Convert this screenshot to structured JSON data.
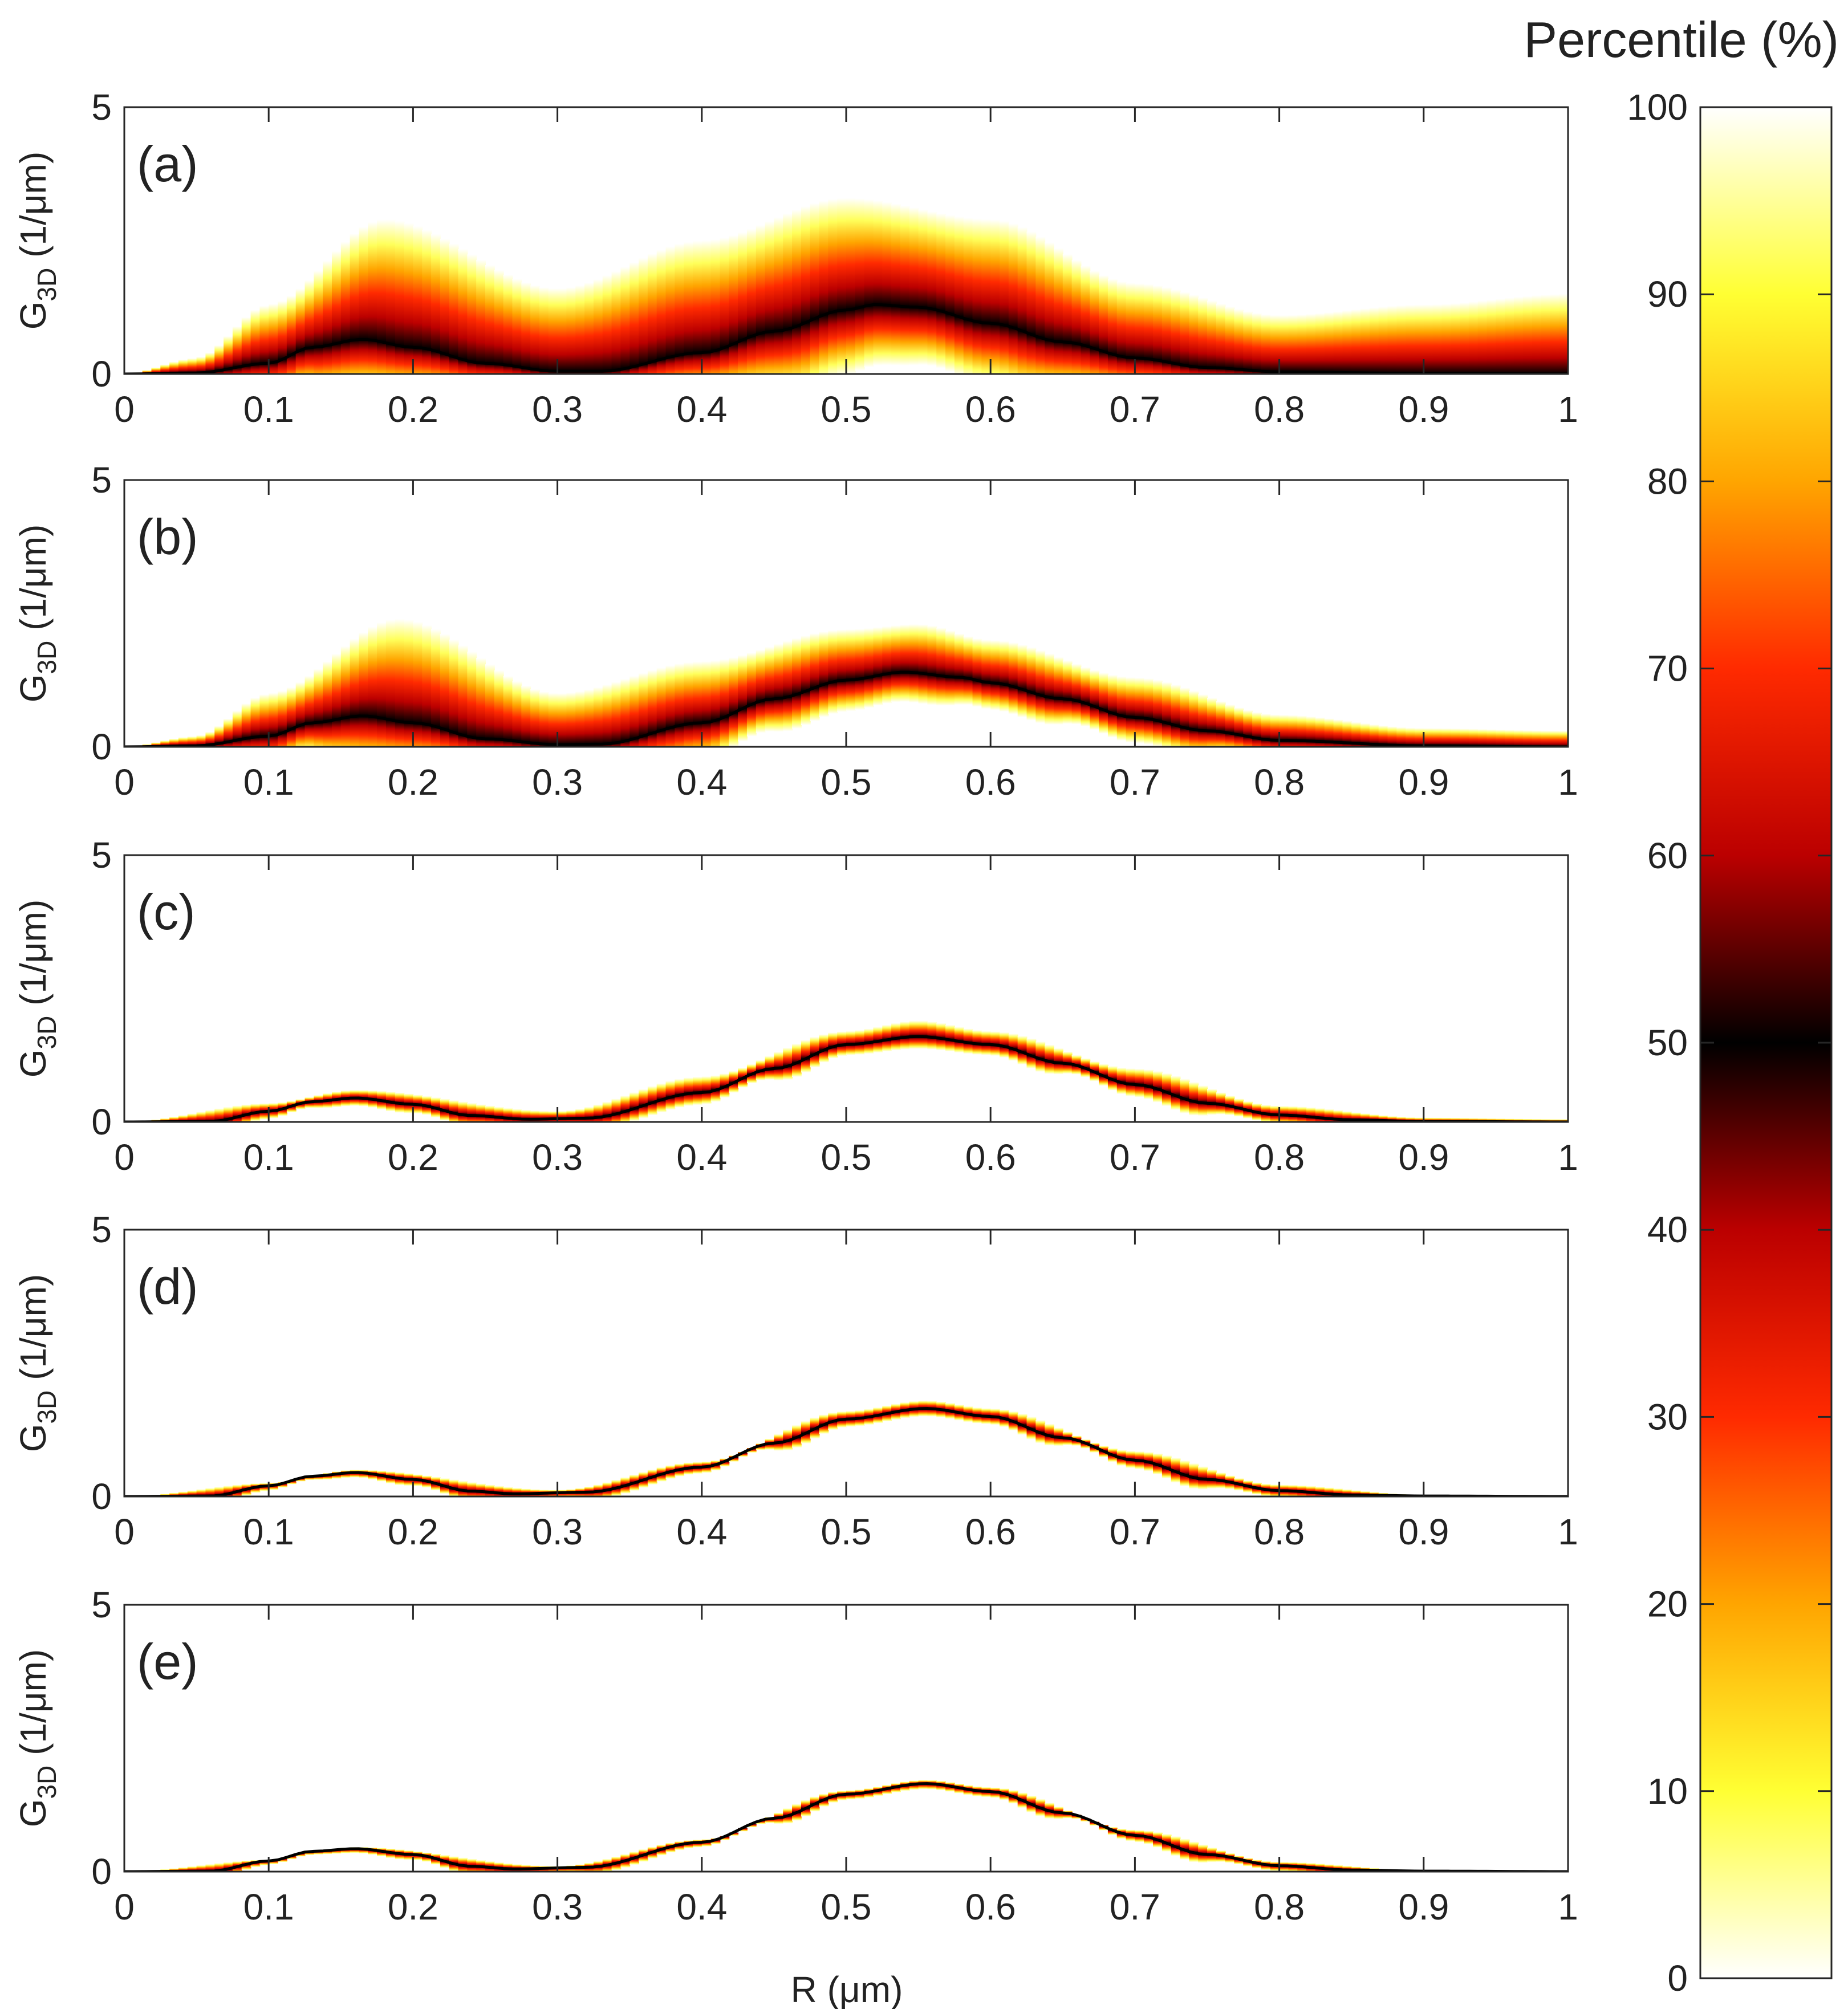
{
  "figure": {
    "xlabel": "R (μm)",
    "ylabel_main": "G",
    "ylabel_sub": "3D",
    "ylabel_unit": " (1/μm)"
  },
  "colorbar": {
    "title": "Percentile (%)",
    "range": [
      0,
      100
    ],
    "ticks": [
      "0",
      "10",
      "20",
      "30",
      "40",
      "50",
      "60",
      "70",
      "80",
      "90",
      "100"
    ],
    "colormap_stops": [
      {
        "value": 0,
        "color": "#ffffff"
      },
      {
        "value": 10,
        "color": "#ffff33"
      },
      {
        "value": 20,
        "color": "#ffa500"
      },
      {
        "value": 30,
        "color": "#ff2a00"
      },
      {
        "value": 40,
        "color": "#bb0000"
      },
      {
        "value": 50,
        "color": "#000000"
      },
      {
        "value": 60,
        "color": "#bb0000"
      },
      {
        "value": 70,
        "color": "#ff2a00"
      },
      {
        "value": 80,
        "color": "#ffa500"
      },
      {
        "value": 90,
        "color": "#ffff33"
      },
      {
        "value": 100,
        "color": "#ffffff"
      }
    ]
  },
  "chart_data": [
    {
      "type": "heatmap",
      "panel": "(a)",
      "xlim": [
        0,
        1
      ],
      "ylim": [
        0,
        5
      ],
      "xticks": [
        "0",
        "0.1",
        "0.2",
        "0.3",
        "0.4",
        "0.5",
        "0.6",
        "0.7",
        "0.8",
        "0.9",
        "1"
      ],
      "yticks": [
        "0",
        "5"
      ],
      "median": {
        "x": [
          0,
          0.05,
          0.1,
          0.13,
          0.165,
          0.2,
          0.25,
          0.3,
          0.33,
          0.4,
          0.45,
          0.5,
          0.52,
          0.55,
          0.6,
          0.65,
          0.7,
          0.75,
          0.8,
          0.9,
          1.0
        ],
        "y": [
          0,
          0.02,
          0.2,
          0.5,
          0.65,
          0.5,
          0.2,
          0.05,
          0.05,
          0.4,
          0.8,
          1.2,
          1.3,
          1.25,
          0.95,
          0.6,
          0.3,
          0.12,
          0.04,
          0.01,
          0
        ]
      },
      "spread": {
        "x": [
          0,
          0.05,
          0.1,
          0.18,
          0.3,
          0.4,
          0.5,
          0.6,
          0.7,
          0.8,
          0.9,
          1.0
        ],
        "upper": [
          0,
          0.3,
          1.3,
          2.9,
          1.6,
          2.5,
          3.3,
          2.9,
          1.7,
          1.1,
          1.3,
          1.5
        ]
      }
    },
    {
      "type": "heatmap",
      "panel": "(b)",
      "xlim": [
        0,
        1
      ],
      "ylim": [
        0,
        5
      ],
      "xticks": [
        "0",
        "0.1",
        "0.2",
        "0.3",
        "0.4",
        "0.5",
        "0.6",
        "0.7",
        "0.8",
        "0.9",
        "1"
      ],
      "yticks": [
        "0",
        "5"
      ],
      "median": {
        "x": [
          0,
          0.05,
          0.1,
          0.13,
          0.165,
          0.2,
          0.25,
          0.3,
          0.33,
          0.4,
          0.45,
          0.5,
          0.54,
          0.58,
          0.6,
          0.65,
          0.7,
          0.75,
          0.8,
          0.9,
          1.0
        ],
        "y": [
          0,
          0.02,
          0.2,
          0.45,
          0.58,
          0.45,
          0.15,
          0.04,
          0.05,
          0.45,
          0.9,
          1.25,
          1.4,
          1.3,
          1.2,
          0.9,
          0.55,
          0.3,
          0.12,
          0.02,
          0
        ]
      },
      "spread": {
        "x": [
          0,
          0.05,
          0.1,
          0.19,
          0.3,
          0.4,
          0.5,
          0.55,
          0.6,
          0.7,
          0.8,
          0.9,
          1.0
        ],
        "upper": [
          0,
          0.2,
          1.0,
          2.4,
          1.0,
          1.6,
          2.2,
          2.3,
          2.0,
          1.3,
          0.6,
          0.35,
          0.3
        ]
      }
    },
    {
      "type": "heatmap",
      "panel": "(c)",
      "xlim": [
        0,
        1
      ],
      "ylim": [
        0,
        5
      ],
      "xticks": [
        "0",
        "0.1",
        "0.2",
        "0.3",
        "0.4",
        "0.5",
        "0.6",
        "0.7",
        "0.8",
        "0.9",
        "1"
      ],
      "yticks": [
        "0",
        "5"
      ],
      "median": {
        "x": [
          0,
          0.06,
          0.1,
          0.13,
          0.16,
          0.2,
          0.24,
          0.28,
          0.32,
          0.4,
          0.45,
          0.5,
          0.55,
          0.6,
          0.65,
          0.7,
          0.75,
          0.8,
          0.85,
          0.9,
          1.0
        ],
        "y": [
          0,
          0.01,
          0.2,
          0.38,
          0.45,
          0.33,
          0.12,
          0.05,
          0.07,
          0.55,
          1.0,
          1.45,
          1.6,
          1.45,
          1.1,
          0.7,
          0.35,
          0.13,
          0.04,
          0.01,
          0
        ]
      },
      "spread": {
        "x": [
          0,
          0.1,
          0.16,
          0.3,
          0.4,
          0.5,
          0.55,
          0.6,
          0.7,
          0.8,
          0.9,
          1.0
        ],
        "upper": [
          0,
          0.35,
          0.6,
          0.2,
          0.85,
          1.7,
          1.9,
          1.7,
          1.0,
          0.3,
          0.08,
          0.05
        ]
      }
    },
    {
      "type": "heatmap",
      "panel": "(d)",
      "xlim": [
        0,
        1
      ],
      "ylim": [
        0,
        5
      ],
      "xticks": [
        "0",
        "0.1",
        "0.2",
        "0.3",
        "0.4",
        "0.5",
        "0.6",
        "0.7",
        "0.8",
        "0.9",
        "1"
      ],
      "yticks": [
        "0",
        "5"
      ],
      "median": {
        "x": [
          0,
          0.06,
          0.1,
          0.13,
          0.16,
          0.2,
          0.24,
          0.27,
          0.32,
          0.4,
          0.45,
          0.5,
          0.555,
          0.6,
          0.65,
          0.7,
          0.75,
          0.8,
          0.85,
          0.9,
          1.0
        ],
        "y": [
          0,
          0.01,
          0.2,
          0.38,
          0.45,
          0.32,
          0.1,
          0.05,
          0.08,
          0.55,
          1.0,
          1.45,
          1.65,
          1.5,
          1.1,
          0.68,
          0.32,
          0.11,
          0.03,
          0.01,
          0
        ]
      },
      "spread": {
        "x": [
          0,
          0.1,
          0.16,
          0.3,
          0.4,
          0.5,
          0.555,
          0.6,
          0.7,
          0.8,
          0.9,
          1.0
        ],
        "upper": [
          0,
          0.25,
          0.5,
          0.12,
          0.65,
          1.6,
          1.8,
          1.65,
          0.85,
          0.22,
          0.03,
          0
        ]
      }
    },
    {
      "type": "heatmap",
      "panel": "(e)",
      "xlim": [
        0,
        1
      ],
      "ylim": [
        0,
        5
      ],
      "xticks": [
        "0",
        "0.1",
        "0.2",
        "0.3",
        "0.4",
        "0.5",
        "0.6",
        "0.7",
        "0.8",
        "0.9",
        "1"
      ],
      "yticks": [
        "0",
        "5"
      ],
      "median": {
        "x": [
          0,
          0.06,
          0.1,
          0.13,
          0.16,
          0.2,
          0.24,
          0.27,
          0.32,
          0.4,
          0.45,
          0.5,
          0.555,
          0.6,
          0.65,
          0.7,
          0.75,
          0.8,
          0.85,
          0.9,
          1.0
        ],
        "y": [
          0,
          0.01,
          0.2,
          0.38,
          0.43,
          0.32,
          0.1,
          0.05,
          0.08,
          0.55,
          1.0,
          1.45,
          1.65,
          1.5,
          1.1,
          0.68,
          0.32,
          0.11,
          0.03,
          0.01,
          0
        ]
      },
      "spread": {
        "x": [
          0,
          0.1,
          0.16,
          0.3,
          0.4,
          0.5,
          0.555,
          0.6,
          0.7,
          0.8,
          0.9,
          1.0
        ],
        "upper": [
          0,
          0.22,
          0.46,
          0.1,
          0.6,
          1.52,
          1.72,
          1.58,
          0.78,
          0.18,
          0.02,
          0
        ]
      }
    }
  ]
}
